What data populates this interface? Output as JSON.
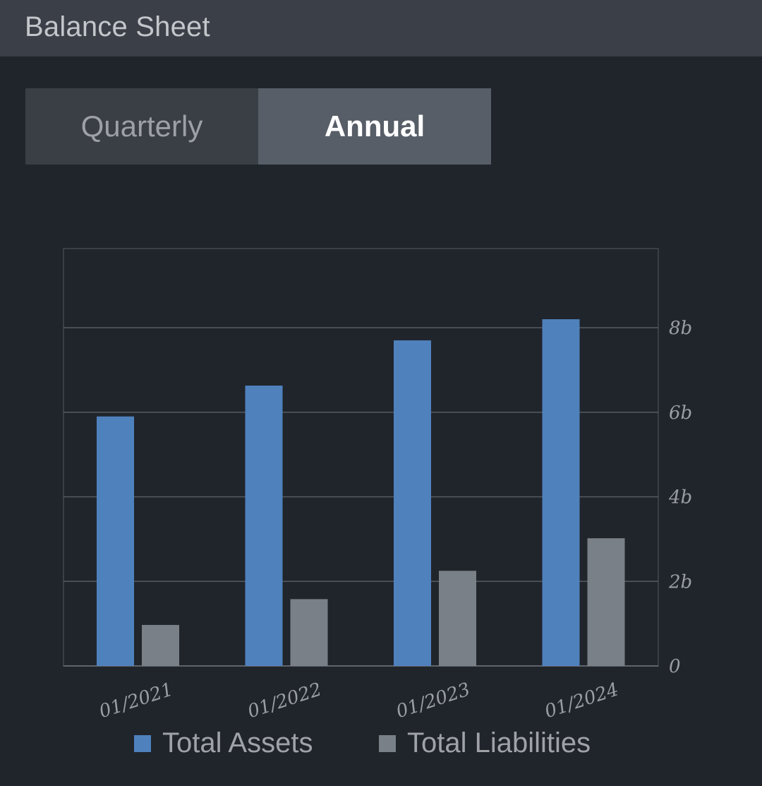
{
  "header": {
    "title": "Balance Sheet"
  },
  "period_toggle": {
    "options": [
      {
        "label": "Quarterly",
        "selected": false
      },
      {
        "label": "Annual",
        "selected": true
      }
    ]
  },
  "colors": {
    "assets": "#4f81bd",
    "liabilities": "#7a8087",
    "grid": "#555b63",
    "frame": "#3a3f46"
  },
  "chart_data": {
    "type": "bar",
    "categories": [
      "01/2021",
      "01/2022",
      "01/2023",
      "01/2024"
    ],
    "series": [
      {
        "name": "Total Assets",
        "values": [
          5.9,
          6.63,
          7.7,
          8.2
        ]
      },
      {
        "name": "Total Liabilities",
        "values": [
          0.97,
          1.58,
          2.25,
          3.02
        ]
      }
    ],
    "ylim": [
      0,
      10
    ],
    "y_ticks": [
      {
        "value": 0,
        "label": "0"
      },
      {
        "value": 2,
        "label": "2b"
      },
      {
        "value": 4,
        "label": "4b"
      },
      {
        "value": 6,
        "label": "6b"
      },
      {
        "value": 8,
        "label": "8b"
      }
    ],
    "y_axis_side": "right",
    "grid": true,
    "legend_position": "bottom"
  }
}
